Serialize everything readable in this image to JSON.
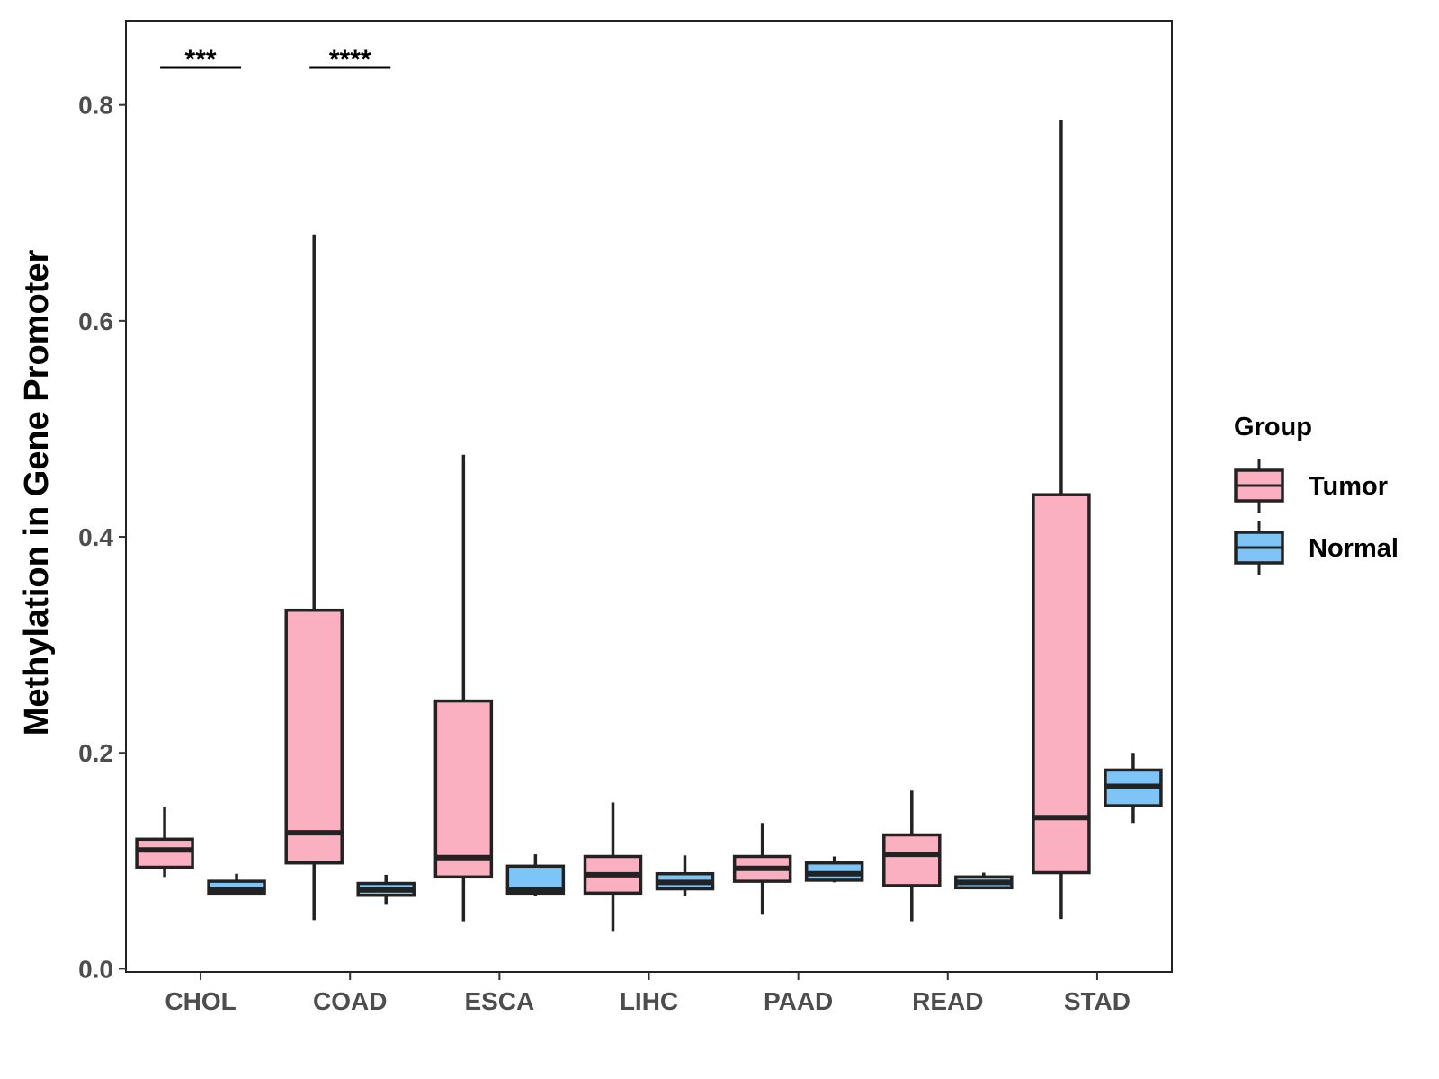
{
  "chart_data": {
    "type": "box",
    "title": "",
    "xlabel": "",
    "ylabel": "Methylation in Gene Promoter",
    "ylim": [
      -0.003,
      0.878
    ],
    "yticks": [
      "0.0",
      "0.2",
      "0.4",
      "0.6",
      "0.8"
    ],
    "categories": [
      "CHOL",
      "COAD",
      "ESCA",
      "LIHC",
      "PAAD",
      "READ",
      "STAD"
    ],
    "legend": {
      "title": "Group",
      "position": "right",
      "items": [
        {
          "name": "Tumor",
          "color": "#FBB0C1"
        },
        {
          "name": "Normal",
          "color": "#7EC4F7"
        }
      ]
    },
    "series": [
      {
        "name": "Tumor",
        "color": "#FBB0C1",
        "boxes": [
          {
            "category": "CHOL",
            "whisker_low": 0.085,
            "q1": 0.094,
            "median": 0.11,
            "q3": 0.12,
            "whisker_high": 0.15
          },
          {
            "category": "COAD",
            "whisker_low": 0.045,
            "q1": 0.098,
            "median": 0.126,
            "q3": 0.332,
            "whisker_high": 0.68
          },
          {
            "category": "ESCA",
            "whisker_low": 0.044,
            "q1": 0.085,
            "median": 0.103,
            "q3": 0.248,
            "whisker_high": 0.476
          },
          {
            "category": "LIHC",
            "whisker_low": 0.035,
            "q1": 0.07,
            "median": 0.087,
            "q3": 0.104,
            "whisker_high": 0.154
          },
          {
            "category": "PAAD",
            "whisker_low": 0.05,
            "q1": 0.081,
            "median": 0.093,
            "q3": 0.104,
            "whisker_high": 0.135
          },
          {
            "category": "READ",
            "whisker_low": 0.044,
            "q1": 0.077,
            "median": 0.106,
            "q3": 0.124,
            "whisker_high": 0.165
          },
          {
            "category": "STAD",
            "whisker_low": 0.046,
            "q1": 0.089,
            "median": 0.14,
            "q3": 0.439,
            "whisker_high": 0.786
          }
        ]
      },
      {
        "name": "Normal",
        "color": "#7EC4F7",
        "boxes": [
          {
            "category": "CHOL",
            "whisker_low": 0.069,
            "q1": 0.07,
            "median": 0.073,
            "q3": 0.081,
            "whisker_high": 0.088
          },
          {
            "category": "COAD",
            "whisker_low": 0.06,
            "q1": 0.068,
            "median": 0.073,
            "q3": 0.079,
            "whisker_high": 0.087
          },
          {
            "category": "ESCA",
            "whisker_low": 0.067,
            "q1": 0.07,
            "median": 0.073,
            "q3": 0.095,
            "whisker_high": 0.106
          },
          {
            "category": "LIHC",
            "whisker_low": 0.067,
            "q1": 0.074,
            "median": 0.08,
            "q3": 0.088,
            "whisker_high": 0.105
          },
          {
            "category": "PAAD",
            "whisker_low": 0.08,
            "q1": 0.082,
            "median": 0.088,
            "q3": 0.098,
            "whisker_high": 0.104
          },
          {
            "category": "READ",
            "whisker_low": 0.075,
            "q1": 0.075,
            "median": 0.08,
            "q3": 0.085,
            "whisker_high": 0.089
          },
          {
            "category": "STAD",
            "whisker_low": 0.135,
            "q1": 0.151,
            "median": 0.169,
            "q3": 0.184,
            "whisker_high": 0.2
          }
        ]
      }
    ],
    "annotations": [
      {
        "category": "CHOL",
        "label": "***"
      },
      {
        "category": "COAD",
        "label": "****"
      }
    ]
  }
}
